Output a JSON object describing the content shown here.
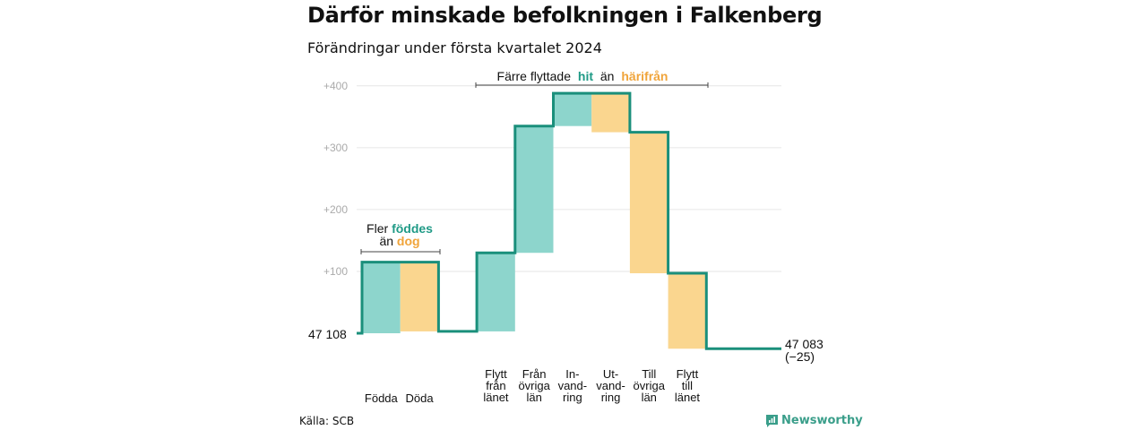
{
  "title": "Därför minskade befolkningen i Falkenberg",
  "subtitle": "Förändringar under första kvartalet 2024",
  "source": "Källa: SCB",
  "brand": "Newsworthy",
  "colors": {
    "increase_fill": "#8dd5cc",
    "decrease_fill": "#fad68f",
    "line": "#1a8f7b",
    "grid": "#e6e6e6",
    "hit": "#1f9a86",
    "from": "#f0a43a"
  },
  "annotations": {
    "births": {
      "prefix": "Fler",
      "hit": "föddes",
      "mid": "än",
      "from": "dog"
    },
    "moves": {
      "prefix": "Färre flyttade",
      "hit": "hit",
      "mid": "än",
      "from": "härifrån"
    }
  },
  "start_label": "47  108",
  "end_label": "47 083",
  "end_change": "(−25)",
  "chart_data": {
    "type": "waterfall",
    "title": "Därför minskade befolkningen i Falkenberg",
    "subtitle": "Förändringar under första kvartalet 2024",
    "ylim": [
      0,
      420
    ],
    "yticks": [
      "+100",
      "+200",
      "+300",
      "+400"
    ],
    "ytick_values": [
      100,
      200,
      300,
      400
    ],
    "grid": true,
    "start_value": 47108,
    "end_value": 47083,
    "net_change": -25,
    "steps": [
      {
        "label": [
          "Födda"
        ],
        "change": 115,
        "kind": "increase"
      },
      {
        "label": [
          "Döda"
        ],
        "change": -112,
        "kind": "decrease"
      },
      {
        "label": [
          "Flytt",
          "från",
          "länet"
        ],
        "change": 127,
        "kind": "increase"
      },
      {
        "label": [
          "Från",
          "övriga",
          "län"
        ],
        "change": 205,
        "kind": "increase"
      },
      {
        "label": [
          "In-",
          "vand-",
          "ring"
        ],
        "change": 53,
        "kind": "increase"
      },
      {
        "label": [
          "Ut-",
          "vand-",
          "ring"
        ],
        "change": -63,
        "kind": "decrease"
      },
      {
        "label": [
          "Till",
          "övriga",
          "län"
        ],
        "change": -228,
        "kind": "decrease"
      },
      {
        "label": [
          "Flytt",
          "till",
          "länet"
        ],
        "change": -122,
        "kind": "decrease"
      }
    ]
  }
}
